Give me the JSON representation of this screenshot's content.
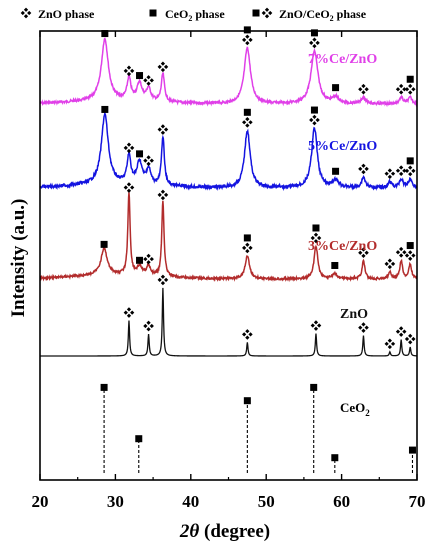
{
  "chart_data": {
    "type": "line",
    "xlabel_main": "2θ",
    "xlabel_unit": "(degree)",
    "ylabel": "Intensity (a.u.)",
    "xlim": [
      20,
      70
    ],
    "xticks": [
      20,
      30,
      40,
      50,
      60,
      70
    ],
    "legend": {
      "zno": "ZnO phase",
      "ceo2_main": "CeO",
      "ceo2_sub": "2",
      "ceo2_tail": " phase",
      "both_main": "ZnO/CeO",
      "both_sub": "2",
      "both_tail": "  phase"
    },
    "zno_reference_peaks": [
      31.8,
      34.4,
      36.3,
      47.5,
      56.6,
      62.9,
      66.4,
      67.9,
      69.1
    ],
    "ceo2_reference_peaks": [
      {
        "x": 28.5,
        "y": 0.88
      },
      {
        "x": 33.1,
        "y": 0.34
      },
      {
        "x": 47.5,
        "y": 0.74
      },
      {
        "x": 56.3,
        "y": 0.88
      },
      {
        "x": 59.1,
        "y": 0.14
      },
      {
        "x": 69.4,
        "y": 0.22
      }
    ],
    "series": [
      {
        "name": "7%Ce/ZnO",
        "color": "#e040e8",
        "peaks": [
          {
            "x": 28.6,
            "h": 1.0,
            "w": 0.55,
            "m": "ceo2"
          },
          {
            "x": 31.8,
            "h": 0.35,
            "w": 0.3,
            "m": "zno"
          },
          {
            "x": 33.2,
            "h": 0.28,
            "w": 0.4,
            "m": "ceo2"
          },
          {
            "x": 34.4,
            "h": 0.2,
            "w": 0.35,
            "m": "zno"
          },
          {
            "x": 36.3,
            "h": 0.45,
            "w": 0.25,
            "m": "zno"
          },
          {
            "x": 47.5,
            "h": 0.9,
            "w": 0.5,
            "m": "both"
          },
          {
            "x": 56.4,
            "h": 0.85,
            "w": 0.55,
            "m": "both"
          },
          {
            "x": 59.2,
            "h": 0.1,
            "w": 0.5,
            "m": "ceo2"
          },
          {
            "x": 62.9,
            "h": 0.1,
            "w": 0.35,
            "m": "zno"
          },
          {
            "x": 67.9,
            "h": 0.1,
            "w": 0.3,
            "m": "zno"
          },
          {
            "x": 69.1,
            "h": 0.1,
            "w": 0.3,
            "m": "both"
          }
        ]
      },
      {
        "name": "5%Ce/ZnO",
        "color": "#1414e0",
        "peaks": [
          {
            "x": 28.6,
            "h": 1.0,
            "w": 0.55,
            "m": "ceo2"
          },
          {
            "x": 31.8,
            "h": 0.4,
            "w": 0.3,
            "m": "zno"
          },
          {
            "x": 33.2,
            "h": 0.32,
            "w": 0.4,
            "m": "ceo2"
          },
          {
            "x": 34.4,
            "h": 0.22,
            "w": 0.35,
            "m": "zno"
          },
          {
            "x": 36.3,
            "h": 0.7,
            "w": 0.22,
            "m": "zno"
          },
          {
            "x": 47.5,
            "h": 0.82,
            "w": 0.45,
            "m": "both"
          },
          {
            "x": 56.4,
            "h": 0.85,
            "w": 0.45,
            "m": "both"
          },
          {
            "x": 59.2,
            "h": 0.1,
            "w": 0.5,
            "m": "ceo2"
          },
          {
            "x": 62.9,
            "h": 0.15,
            "w": 0.3,
            "m": "zno"
          },
          {
            "x": 66.4,
            "h": 0.08,
            "w": 0.3,
            "m": "zno"
          },
          {
            "x": 67.9,
            "h": 0.12,
            "w": 0.3,
            "m": "zno"
          },
          {
            "x": 69.1,
            "h": 0.12,
            "w": 0.3,
            "m": "both"
          }
        ]
      },
      {
        "name": "3%Ce/ZnO",
        "color": "#b22c2c",
        "peaks": [
          {
            "x": 28.5,
            "h": 0.32,
            "w": 0.5,
            "m": "ceo2"
          },
          {
            "x": 31.8,
            "h": 1.0,
            "w": 0.18,
            "m": "zno"
          },
          {
            "x": 33.2,
            "h": 0.1,
            "w": 0.4,
            "m": "ceo2"
          },
          {
            "x": 34.4,
            "h": 0.12,
            "w": 0.3,
            "m": "zno"
          },
          {
            "x": 36.3,
            "h": 0.92,
            "w": 0.18,
            "m": "zno"
          },
          {
            "x": 47.5,
            "h": 0.28,
            "w": 0.35,
            "m": "both"
          },
          {
            "x": 56.6,
            "h": 0.4,
            "w": 0.3,
            "m": "both"
          },
          {
            "x": 59.1,
            "h": 0.06,
            "w": 0.4,
            "m": "ceo2"
          },
          {
            "x": 62.9,
            "h": 0.22,
            "w": 0.22,
            "m": "zno"
          },
          {
            "x": 66.4,
            "h": 0.08,
            "w": 0.22,
            "m": "zno"
          },
          {
            "x": 67.9,
            "h": 0.22,
            "w": 0.22,
            "m": "zno"
          },
          {
            "x": 69.1,
            "h": 0.18,
            "w": 0.22,
            "m": "both"
          }
        ]
      },
      {
        "name": "ZnO",
        "color": "#111111",
        "peaks": [
          {
            "x": 31.8,
            "h": 0.52,
            "w": 0.1,
            "m": "zno"
          },
          {
            "x": 34.4,
            "h": 0.32,
            "w": 0.1,
            "m": "zno"
          },
          {
            "x": 36.3,
            "h": 1.0,
            "w": 0.1,
            "m": "zno"
          },
          {
            "x": 47.5,
            "h": 0.2,
            "w": 0.1,
            "m": "zno"
          },
          {
            "x": 56.6,
            "h": 0.33,
            "w": 0.1,
            "m": "zno"
          },
          {
            "x": 62.9,
            "h": 0.3,
            "w": 0.1,
            "m": "zno"
          },
          {
            "x": 66.4,
            "h": 0.06,
            "w": 0.1,
            "m": "zno"
          },
          {
            "x": 67.9,
            "h": 0.24,
            "w": 0.1,
            "m": "zno"
          },
          {
            "x": 69.1,
            "h": 0.13,
            "w": 0.1,
            "m": "zno"
          }
        ]
      }
    ],
    "ref_label_main": "CeO",
    "ref_label_sub": "2"
  }
}
